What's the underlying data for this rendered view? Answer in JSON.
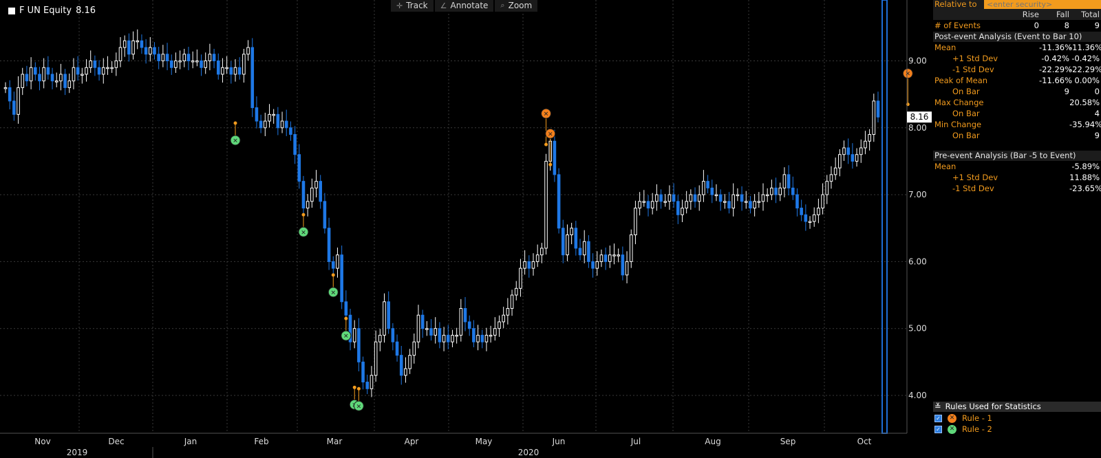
{
  "legend": {
    "label": "F UN Equity",
    "value": "8.16"
  },
  "toolbar": [
    {
      "icon": "crosshair-icon",
      "glyph": "✛",
      "label": "Track"
    },
    {
      "icon": "pencil-icon",
      "glyph": "∠",
      "label": "Annotate"
    },
    {
      "icon": "magnifier-icon",
      "glyph": "⌕",
      "label": "Zoom"
    }
  ],
  "colors": {
    "up": "#ffffff",
    "down": "#1e78e6",
    "rule1": "#f2801d",
    "rule2": "#5fd87a",
    "accent": "#f29b1d",
    "marker_line": "#1e6fd9"
  },
  "chart_data": {
    "type": "candlestick",
    "title": "",
    "ylim": [
      3.5,
      9.8
    ],
    "y_ticks": [
      "4.00",
      "5.00",
      "6.00",
      "7.00",
      "8.00",
      "9.00"
    ],
    "x_month_labels": [
      "Nov",
      "Dec",
      "Jan",
      "Feb",
      "Mar",
      "Apr",
      "May",
      "Jun",
      "Jul",
      "Aug",
      "Sep",
      "Oct"
    ],
    "x_year_labels": [
      "2019",
      "2020"
    ],
    "last_price": "8.16",
    "closes": [
      8.6,
      8.4,
      8.2,
      8.6,
      8.8,
      8.7,
      8.9,
      8.8,
      8.7,
      8.9,
      8.8,
      8.7,
      8.7,
      8.8,
      8.6,
      8.7,
      8.9,
      8.8,
      8.8,
      8.9,
      9.0,
      8.9,
      8.8,
      8.9,
      8.9,
      8.9,
      9.0,
      9.2,
      9.3,
      9.1,
      9.3,
      9.3,
      9.2,
      9.1,
      9.2,
      9.1,
      9.0,
      9.1,
      9.0,
      8.9,
      9.0,
      9.0,
      9.1,
      9.0,
      9.0,
      9.0,
      8.9,
      9.0,
      9.1,
      9.0,
      8.8,
      8.9,
      8.9,
      8.8,
      8.9,
      8.8,
      9.1,
      9.2,
      8.3,
      8.1,
      8.0,
      8.1,
      8.2,
      8.2,
      8.0,
      8.1,
      8.0,
      7.9,
      7.6,
      7.2,
      6.8,
      6.9,
      7.1,
      7.2,
      6.9,
      6.5,
      6.0,
      5.9,
      6.1,
      5.4,
      5.2,
      4.8,
      5.0,
      4.5,
      4.2,
      4.1,
      4.3,
      4.8,
      4.9,
      5.4,
      5.0,
      4.8,
      4.6,
      4.3,
      4.4,
      4.6,
      4.8,
      5.2,
      5.0,
      5.0,
      4.9,
      5.0,
      4.8,
      4.9,
      4.8,
      4.9,
      4.9,
      5.3,
      5.1,
      5.0,
      4.8,
      4.9,
      4.8,
      4.9,
      4.9,
      5.0,
      5.1,
      5.2,
      5.3,
      5.5,
      5.6,
      5.9,
      6.0,
      5.9,
      6.0,
      6.1,
      6.2,
      7.5,
      7.8,
      7.3,
      6.5,
      6.1,
      6.4,
      6.5,
      6.2,
      6.1,
      6.3,
      6.0,
      5.9,
      6.0,
      6.1,
      6.0,
      6.1,
      6.1,
      6.1,
      5.8,
      6.0,
      6.4,
      6.8,
      6.9,
      6.9,
      6.8,
      6.9,
      7.0,
      6.9,
      6.9,
      7.0,
      6.9,
      6.7,
      6.8,
      6.9,
      7.0,
      6.9,
      7.0,
      7.2,
      7.1,
      7.0,
      7.0,
      6.9,
      6.9,
      6.8,
      7.0,
      7.0,
      6.9,
      6.9,
      6.8,
      6.9,
      6.9,
      7.0,
      7.0,
      7.1,
      7.0,
      7.1,
      7.3,
      7.1,
      7.0,
      6.8,
      6.7,
      6.6,
      6.6,
      6.7,
      6.8,
      7.0,
      7.2,
      7.3,
      7.4,
      7.6,
      7.7,
      7.6,
      7.5,
      7.6,
      7.7,
      7.8,
      7.9,
      8.4,
      8.16
    ],
    "events": [
      {
        "rule": "2",
        "day": 54,
        "price": 8.07,
        "label": "8.07"
      },
      {
        "rule": "2",
        "day": 70,
        "price": 6.7,
        "label": "6.70"
      },
      {
        "rule": "2",
        "day": 77,
        "price": 5.8,
        "label": "5.80"
      },
      {
        "rule": "2",
        "day": 80,
        "price": 5.15,
        "label": "5.15"
      },
      {
        "rule": "2",
        "day": 82,
        "price": 4.12,
        "label": "4.12"
      },
      {
        "rule": "2",
        "day": 83,
        "price": 4.1,
        "label": "4.10"
      },
      {
        "rule": "1",
        "day": 127,
        "price": 7.75,
        "label": "7.75"
      },
      {
        "rule": "1",
        "day": 128,
        "price": 7.45,
        "label": "7.45"
      },
      {
        "rule": "1",
        "day": 212,
        "price": 8.35,
        "label": "8.35"
      }
    ]
  },
  "panel": {
    "relative_label": "Relative to",
    "relative_placeholder": "<enter security>",
    "cols": [
      "Rise",
      "Fall",
      "Total"
    ],
    "events_label": "# of Events",
    "events_values": [
      "0",
      "8",
      "9"
    ],
    "post_title": "Post-event Analysis (Event to Bar 10)",
    "post_rows": [
      {
        "label": "Mean",
        "indent": false,
        "fall": "-11.36%",
        "total": "-11.36%"
      },
      {
        "label": "+1 Std Dev",
        "indent": true,
        "fall": "-0.42%",
        "total": "-0.42%"
      },
      {
        "label": "-1 Std Dev",
        "indent": true,
        "fall": "-22.29%",
        "total": "-22.29%"
      },
      {
        "label": "Peak of Mean",
        "indent": false,
        "fall": "-11.66%",
        "total": "0.00%"
      },
      {
        "label": "On Bar",
        "indent": true,
        "fall": "9",
        "total": "0"
      },
      {
        "label": "Max Change",
        "indent": false,
        "fall": "",
        "total": "20.58%"
      },
      {
        "label": "On Bar",
        "indent": true,
        "fall": "",
        "total": "4"
      },
      {
        "label": "Min Change",
        "indent": false,
        "fall": "",
        "total": "-35.94%"
      },
      {
        "label": "On Bar",
        "indent": true,
        "fall": "",
        "total": "9"
      }
    ],
    "pre_title": "Pre-event Analysis (Bar -5 to Event)",
    "pre_rows": [
      {
        "label": "Mean",
        "indent": false,
        "total": "-5.89%"
      },
      {
        "label": "+1 Std Dev",
        "indent": true,
        "total": "11.88%"
      },
      {
        "label": "-1 Std Dev",
        "indent": true,
        "total": "-23.65%"
      }
    ],
    "rules_title": "Rules Used for Statistics",
    "rules": [
      {
        "label": "Rule - 1",
        "color": "#f2801d"
      },
      {
        "label": "Rule - 2",
        "color": "#5fd87a"
      }
    ]
  }
}
